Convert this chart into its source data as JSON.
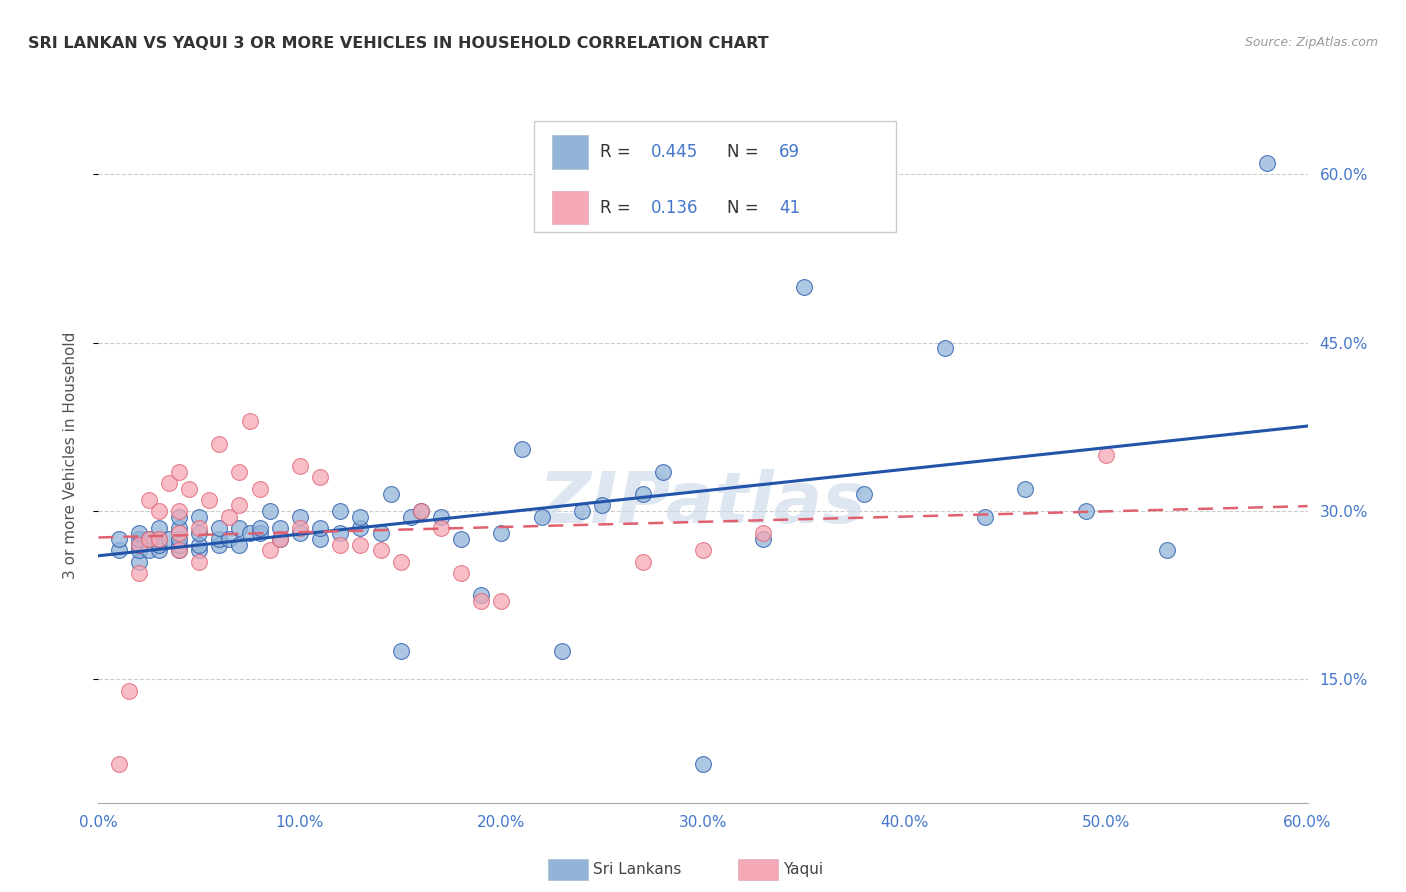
{
  "title": "SRI LANKAN VS YAQUI 3 OR MORE VEHICLES IN HOUSEHOLD CORRELATION CHART",
  "source": "Source: ZipAtlas.com",
  "xlabel_ticks": [
    "0.0%",
    "10.0%",
    "20.0%",
    "30.0%",
    "40.0%",
    "50.0%",
    "60.0%"
  ],
  "ylabel_ticks": [
    "15.0%",
    "30.0%",
    "45.0%",
    "60.0%"
  ],
  "ylabel_label": "3 or more Vehicles in Household",
  "xlim": [
    0.0,
    0.6
  ],
  "ylim": [
    0.04,
    0.66
  ],
  "legend_bottom_labels": [
    "Sri Lankans",
    "Yaqui"
  ],
  "sri_lankan_R": "0.445",
  "sri_lankan_N": "69",
  "yaqui_R": "0.136",
  "yaqui_N": "41",
  "blue_scatter_color": "#92B4D8",
  "pink_scatter_color": "#F5A8B5",
  "blue_line_color": "#2255AA",
  "pink_line_color": "#E06070",
  "title_color": "#333333",
  "axis_label_color": "#555555",
  "tick_color_blue": "#4477CC",
  "grid_color": "#CCCCCC",
  "watermark_text": "ZIPatlas",
  "watermark_color": "#C8D8E8",
  "sri_lankans_x": [
    0.01,
    0.01,
    0.02,
    0.02,
    0.02,
    0.02,
    0.02,
    0.025,
    0.025,
    0.03,
    0.03,
    0.03,
    0.03,
    0.035,
    0.04,
    0.04,
    0.04,
    0.04,
    0.04,
    0.05,
    0.05,
    0.05,
    0.05,
    0.06,
    0.06,
    0.06,
    0.065,
    0.07,
    0.07,
    0.075,
    0.08,
    0.08,
    0.085,
    0.09,
    0.09,
    0.1,
    0.1,
    0.11,
    0.11,
    0.12,
    0.12,
    0.13,
    0.13,
    0.14,
    0.145,
    0.15,
    0.155,
    0.16,
    0.17,
    0.18,
    0.19,
    0.2,
    0.21,
    0.22,
    0.23,
    0.24,
    0.25,
    0.27,
    0.28,
    0.3,
    0.33,
    0.35,
    0.38,
    0.42,
    0.44,
    0.46,
    0.49,
    0.53,
    0.58
  ],
  "sri_lankans_y": [
    0.265,
    0.275,
    0.255,
    0.265,
    0.27,
    0.275,
    0.28,
    0.265,
    0.275,
    0.265,
    0.27,
    0.275,
    0.285,
    0.275,
    0.265,
    0.27,
    0.275,
    0.285,
    0.295,
    0.265,
    0.27,
    0.28,
    0.295,
    0.27,
    0.275,
    0.285,
    0.275,
    0.27,
    0.285,
    0.28,
    0.28,
    0.285,
    0.3,
    0.275,
    0.285,
    0.28,
    0.295,
    0.275,
    0.285,
    0.28,
    0.3,
    0.285,
    0.295,
    0.28,
    0.315,
    0.175,
    0.295,
    0.3,
    0.295,
    0.275,
    0.225,
    0.28,
    0.355,
    0.295,
    0.175,
    0.3,
    0.305,
    0.315,
    0.335,
    0.075,
    0.275,
    0.5,
    0.315,
    0.445,
    0.295,
    0.32,
    0.3,
    0.265,
    0.61
  ],
  "yaqui_x": [
    0.01,
    0.015,
    0.02,
    0.02,
    0.025,
    0.025,
    0.03,
    0.03,
    0.035,
    0.04,
    0.04,
    0.04,
    0.04,
    0.045,
    0.05,
    0.05,
    0.055,
    0.06,
    0.065,
    0.07,
    0.07,
    0.075,
    0.08,
    0.085,
    0.09,
    0.1,
    0.1,
    0.11,
    0.12,
    0.13,
    0.14,
    0.15,
    0.16,
    0.17,
    0.18,
    0.19,
    0.2,
    0.27,
    0.3,
    0.33,
    0.5
  ],
  "yaqui_y": [
    0.075,
    0.14,
    0.245,
    0.27,
    0.275,
    0.31,
    0.275,
    0.3,
    0.325,
    0.265,
    0.28,
    0.3,
    0.335,
    0.32,
    0.255,
    0.285,
    0.31,
    0.36,
    0.295,
    0.305,
    0.335,
    0.38,
    0.32,
    0.265,
    0.275,
    0.285,
    0.34,
    0.33,
    0.27,
    0.27,
    0.265,
    0.255,
    0.3,
    0.285,
    0.245,
    0.22,
    0.22,
    0.255,
    0.265,
    0.28,
    0.35
  ]
}
